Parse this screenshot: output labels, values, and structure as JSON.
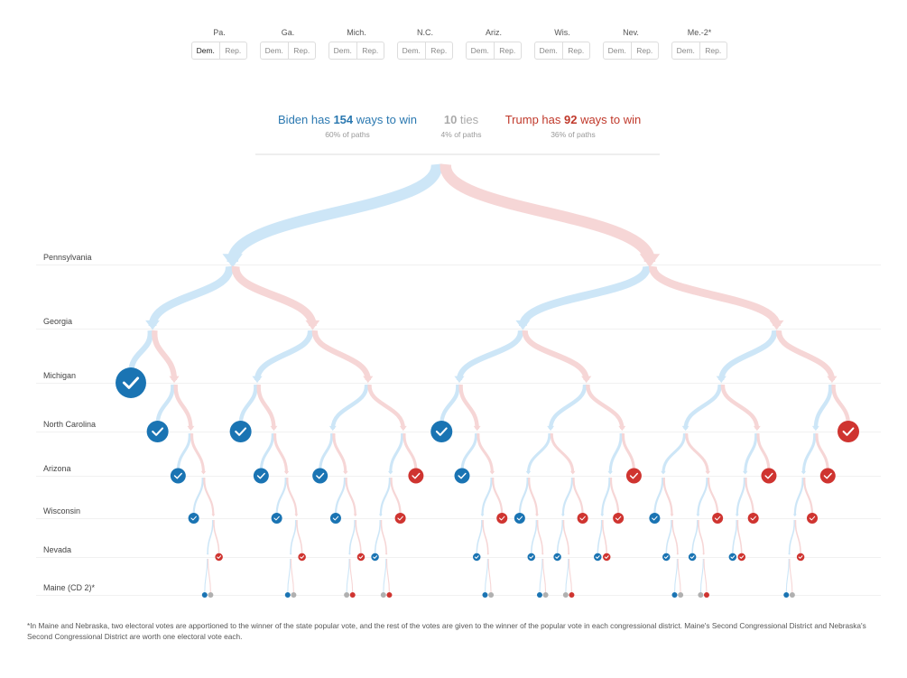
{
  "toggles": [
    {
      "state": "Pa.",
      "dem": "Dem.",
      "rep": "Rep.",
      "selected": "dem"
    },
    {
      "state": "Ga.",
      "dem": "Dem.",
      "rep": "Rep."
    },
    {
      "state": "Mich.",
      "dem": "Dem.",
      "rep": "Rep."
    },
    {
      "state": "N.C.",
      "dem": "Dem.",
      "rep": "Rep."
    },
    {
      "state": "Ariz.",
      "dem": "Dem.",
      "rep": "Rep."
    },
    {
      "state": "Wis.",
      "dem": "Dem.",
      "rep": "Rep."
    },
    {
      "state": "Nev.",
      "dem": "Dem.",
      "rep": "Rep."
    },
    {
      "state": "Me.-2*",
      "dem": "Dem.",
      "rep": "Rep."
    }
  ],
  "summary": {
    "biden": {
      "prefix": "Biden has ",
      "count": "154",
      "suffix": " ways to win",
      "sub": "60% of paths"
    },
    "ties": {
      "count": "10",
      "suffix": " ties",
      "sub": "4% of paths"
    },
    "trump": {
      "prefix": "Trump has ",
      "count": "92",
      "suffix": " ways to win",
      "sub": "36% of paths"
    }
  },
  "rows": [
    "Pennsylvania",
    "Georgia",
    "Michigan",
    "North Carolina",
    "Arizona",
    "Wisconsin",
    "Nevada",
    "Maine (CD 2)*"
  ],
  "footnote": "*In Maine and Nebraska, two electoral votes are apportioned to the winner of the state popular vote, and the rest of the votes are given to the winner of the popular vote in each congressional district. Maine's Second Congressional District and Nebraska's Second Congressional District are worth one electoral vote each.",
  "colors": {
    "dem": "#1a74b3",
    "rep": "#cf3430",
    "tie": "#b0b0b0",
    "dem_branch": "#cde6f7",
    "rep_branch": "#f6d6d6",
    "dem_text": "#2a78b0",
    "rep_text": "#c0392b"
  }
}
